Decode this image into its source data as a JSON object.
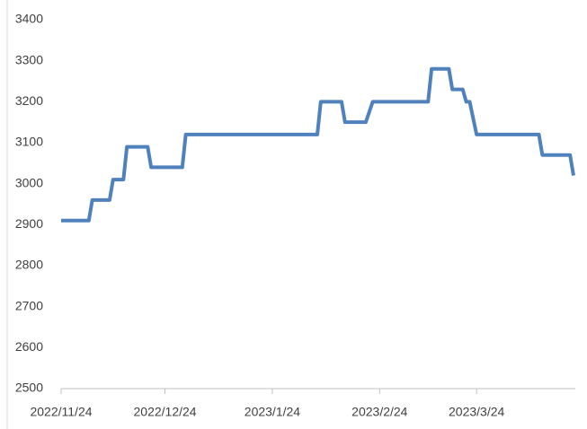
{
  "chart_data": {
    "type": "line",
    "x": [
      "2022/11/24",
      "2022/12/2",
      "2022/12/3",
      "2022/12/8",
      "2022/12/9",
      "2022/12/12",
      "2022/12/13",
      "2022/12/19",
      "2022/12/20",
      "2022/12/29",
      "2022/12/30",
      "2023/2/6",
      "2023/2/7",
      "2023/2/13",
      "2023/2/14",
      "2023/2/20",
      "2023/2/22",
      "2023/3/10",
      "2023/3/11",
      "2023/3/16",
      "2023/3/17",
      "2023/3/20",
      "2023/3/21",
      "2023/3/22",
      "2023/3/24",
      "2023/4/11",
      "2023/4/12",
      "2023/4/20",
      "2023/4/21"
    ],
    "series": [
      {
        "color": "#4f81bd",
        "values": [
          2910,
          2910,
          2960,
          2960,
          3010,
          3010,
          3090,
          3090,
          3040,
          3040,
          3120,
          3120,
          3200,
          3200,
          3150,
          3150,
          3200,
          3200,
          3280,
          3280,
          3230,
          3230,
          3200,
          3200,
          3120,
          3120,
          3070,
          3070,
          3020
        ]
      }
    ],
    "xlim": [
      "2022/11/24",
      "2023/4/21"
    ],
    "xticks": [
      "2022/11/24",
      "2022/12/24",
      "2023/1/24",
      "2023/2/24",
      "2023/3/24"
    ],
    "ylim": [
      2500,
      3400
    ],
    "yticks": [
      2500,
      2600,
      2700,
      2800,
      2900,
      3000,
      3100,
      3200,
      3300,
      3400
    ]
  }
}
